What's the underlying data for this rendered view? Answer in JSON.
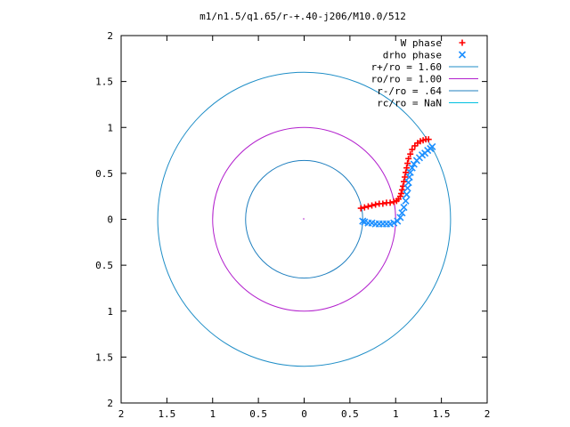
{
  "chart_data": {
    "type": "scatter",
    "title": "m1/n1.5/q1.65/r-+.40-j206/M10.0/512",
    "xlabel": "",
    "ylabel": "",
    "xlim": [
      -2,
      2
    ],
    "ylim": [
      -2,
      2
    ],
    "x_ticks": [
      -2,
      -1.5,
      -1,
      -0.5,
      0,
      0.5,
      1,
      1.5,
      2
    ],
    "x_tick_labels": [
      "2",
      "1.5",
      "1",
      "0.5",
      "0",
      "0.5",
      "1",
      "1.5",
      "2"
    ],
    "y_ticks": [
      2,
      1.5,
      1,
      0.5,
      0,
      -0.5,
      -1,
      -1.5,
      -2
    ],
    "y_tick_labels": [
      "2",
      "1.5",
      "1",
      "0.5",
      "0",
      "0.5",
      "1",
      "1.5",
      "2"
    ],
    "grid": false,
    "legend_position": "top-right",
    "series": [
      {
        "name": "W phase",
        "kind": "points",
        "marker": "plus",
        "color": "#ff0000",
        "x": [
          0.62,
          0.66,
          0.7,
          0.74,
          0.78,
          0.82,
          0.86,
          0.9,
          0.94,
          0.98,
          1.01,
          1.03,
          1.05,
          1.06,
          1.07,
          1.08,
          1.09,
          1.1,
          1.11,
          1.12,
          1.13,
          1.14,
          1.16,
          1.18,
          1.21,
          1.24,
          1.27,
          1.3,
          1.33,
          1.36
        ],
        "y": [
          0.12,
          0.13,
          0.14,
          0.15,
          0.16,
          0.17,
          0.17,
          0.18,
          0.18,
          0.19,
          0.2,
          0.22,
          0.25,
          0.28,
          0.32,
          0.36,
          0.41,
          0.46,
          0.51,
          0.56,
          0.61,
          0.66,
          0.71,
          0.76,
          0.8,
          0.83,
          0.85,
          0.86,
          0.87,
          0.87
        ]
      },
      {
        "name": "drho phase",
        "kind": "points",
        "marker": "cross",
        "color": "#1e90ff",
        "x": [
          0.64,
          0.66,
          0.7,
          0.74,
          0.78,
          0.82,
          0.86,
          0.9,
          0.94,
          0.98,
          1.02,
          1.05,
          1.07,
          1.09,
          1.11,
          1.12,
          1.13,
          1.14,
          1.15,
          1.16,
          1.18,
          1.2,
          1.23,
          1.26,
          1.29,
          1.32,
          1.35,
          1.38,
          1.4
        ],
        "y": [
          -0.02,
          -0.03,
          -0.04,
          -0.04,
          -0.05,
          -0.05,
          -0.05,
          -0.05,
          -0.05,
          -0.04,
          -0.02,
          0.02,
          0.07,
          0.13,
          0.2,
          0.27,
          0.34,
          0.4,
          0.46,
          0.51,
          0.56,
          0.6,
          0.64,
          0.67,
          0.7,
          0.72,
          0.75,
          0.77,
          0.79
        ]
      },
      {
        "name": "r+/ro = 1.60",
        "kind": "circle",
        "r": 1.6,
        "color": "#1f8ec7"
      },
      {
        "name": "ro/ro = 1.00",
        "kind": "circle",
        "r": 1.0,
        "color": "#b21fcd"
      },
      {
        "name": "r-/ro = .64",
        "kind": "circle",
        "r": 0.64,
        "color": "#1f7fbf"
      },
      {
        "name": "rc/ro = NaN",
        "kind": "line",
        "color": "#00c0e0"
      }
    ]
  }
}
